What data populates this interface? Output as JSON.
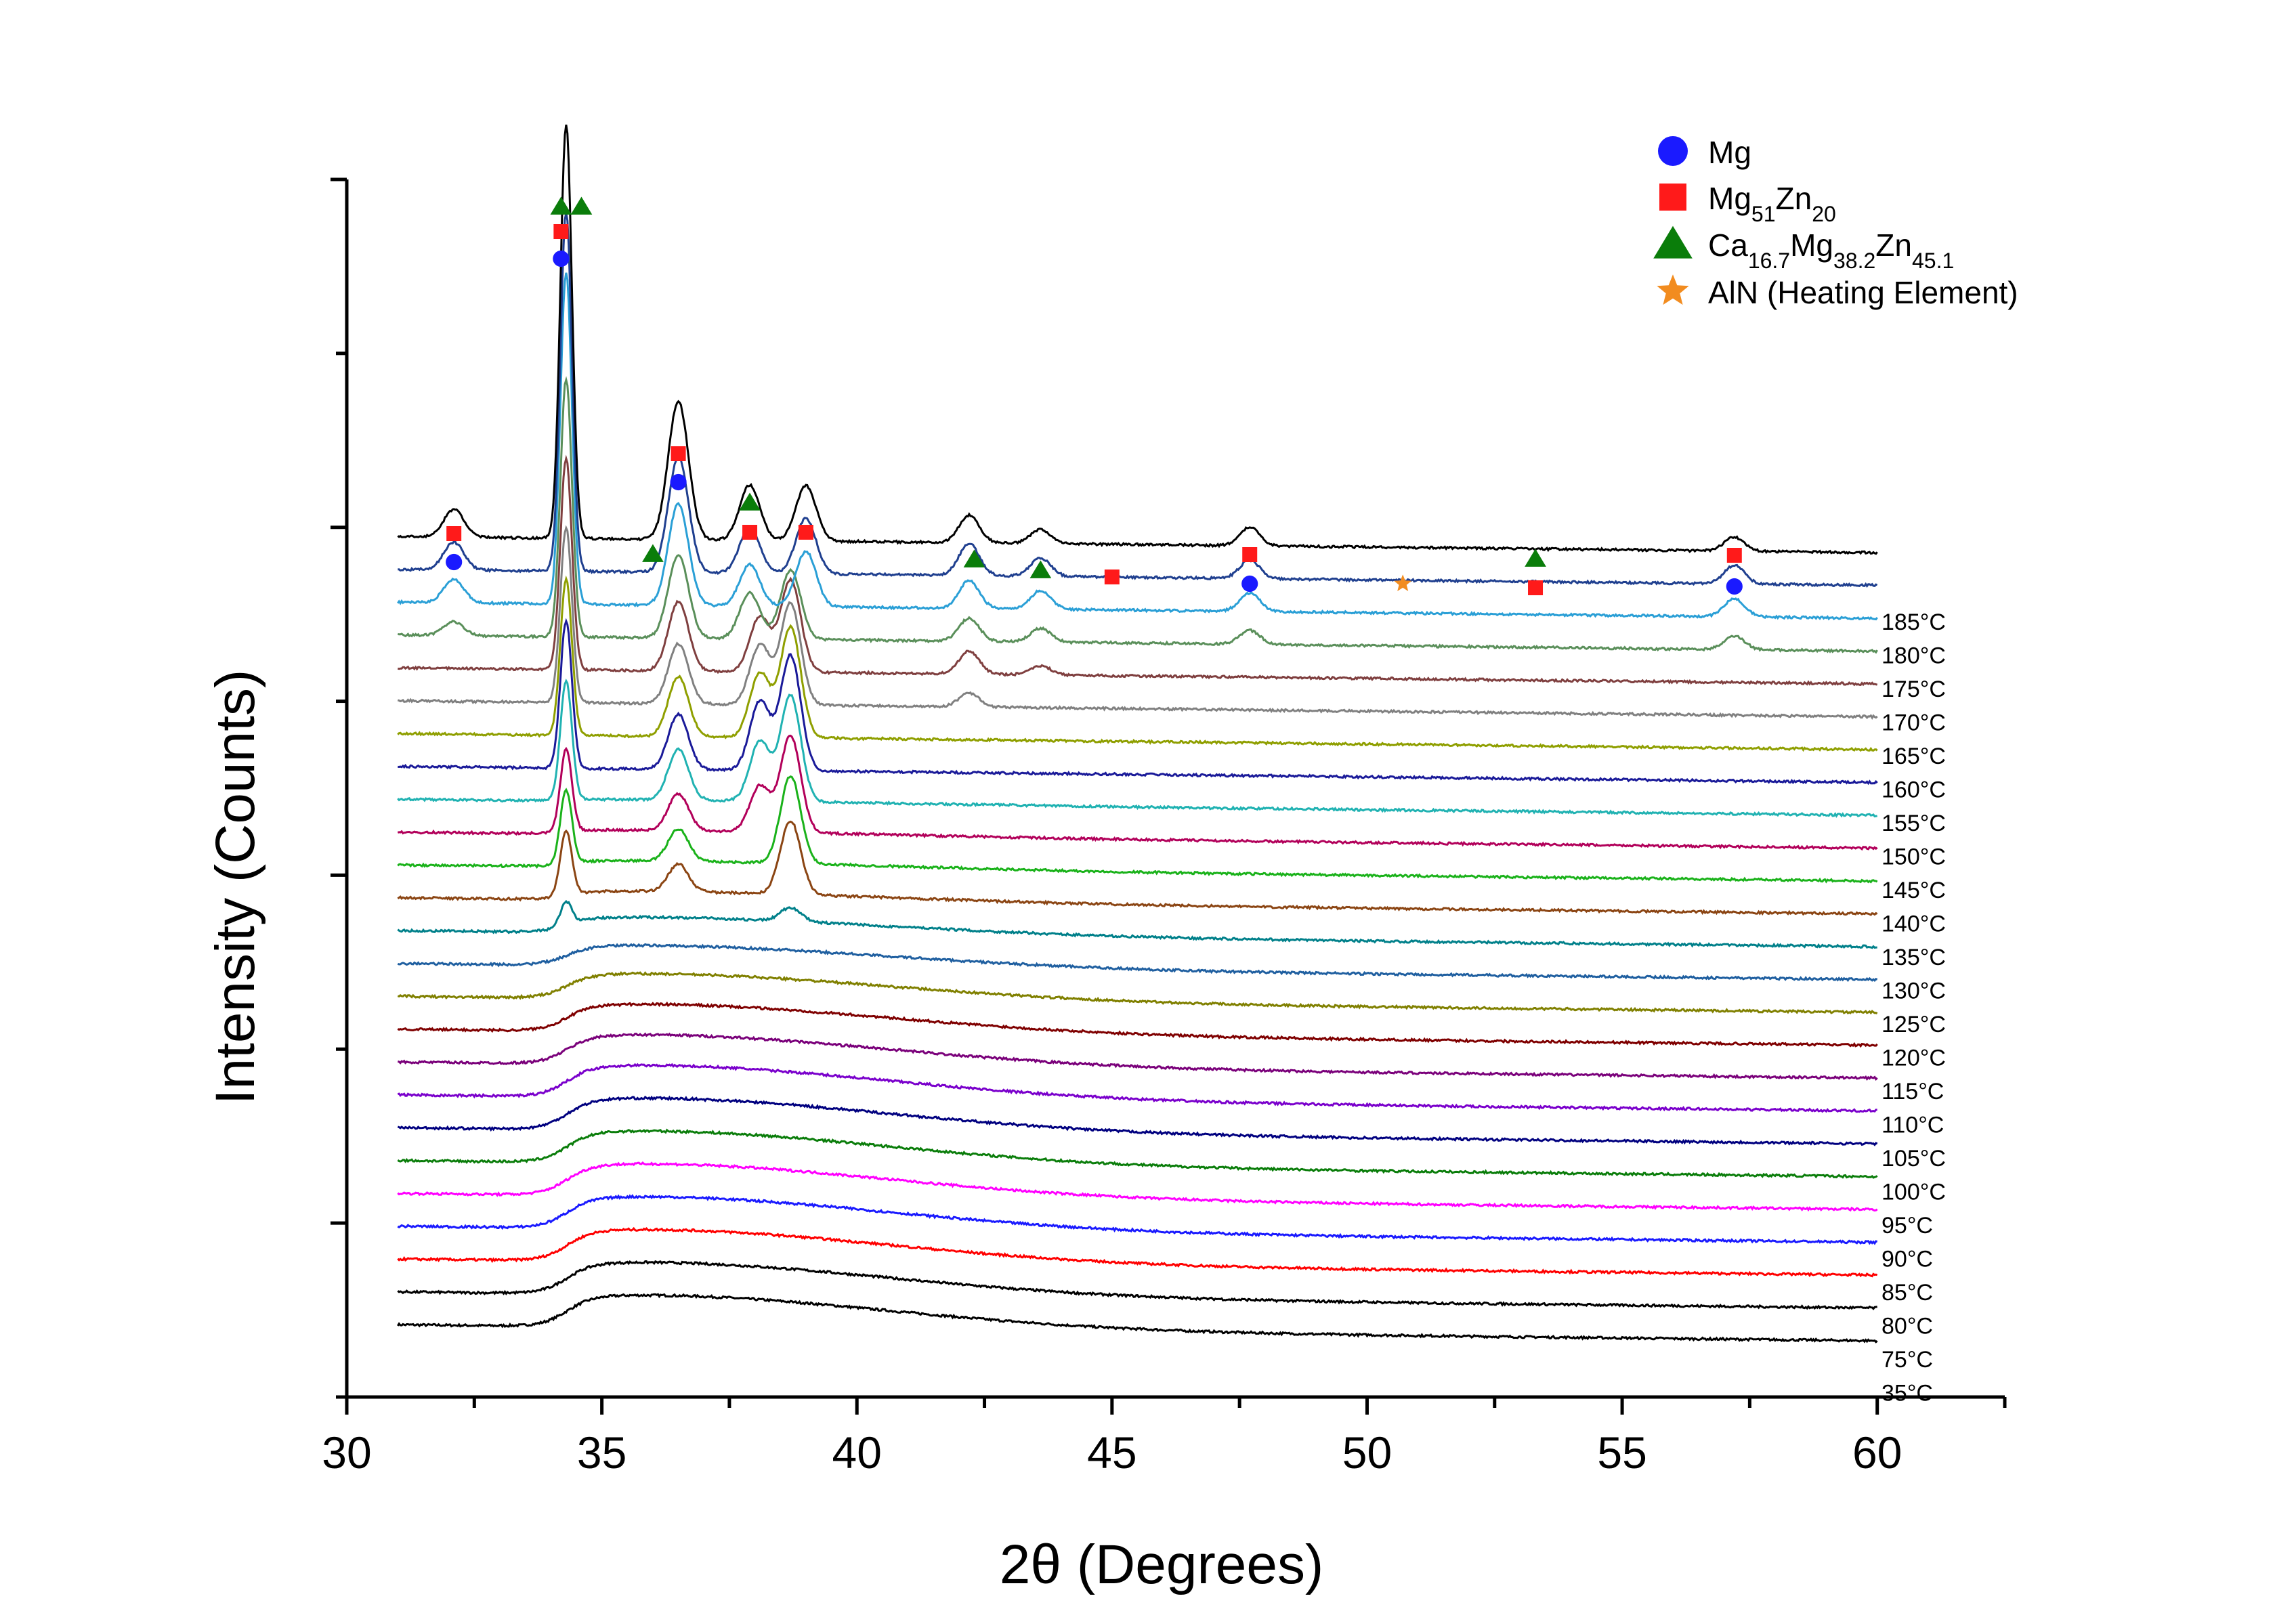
{
  "chart_data": {
    "type": "line",
    "title": "",
    "xlabel": "2θ (Degrees)",
    "ylabel": "Intensity (Counts)",
    "xlim": [
      30,
      62.5
    ],
    "x_ticks": [
      30,
      35,
      40,
      45,
      50,
      55,
      60
    ],
    "x_tick_labels": [
      "30",
      "35",
      "40",
      "45",
      "50",
      "55",
      "60"
    ],
    "x_range": [
      31,
      60
    ],
    "grid": false,
    "legend_placement": "top-right",
    "legend": [
      {
        "shape": "circle",
        "color": "#1a1aff",
        "label": "Mg",
        "sub": [],
        "parts": [
          {
            "t": "Mg",
            "s": false
          }
        ]
      },
      {
        "shape": "square",
        "color": "#ff1a1a",
        "label": "Mg51Zn20",
        "parts": [
          {
            "t": "Mg",
            "s": false
          },
          {
            "t": "51",
            "s": true
          },
          {
            "t": "Zn",
            "s": false
          },
          {
            "t": "20",
            "s": true
          }
        ]
      },
      {
        "shape": "triangle",
        "color": "#0a7d0a",
        "label": "Ca16.7Mg38.2Zn45.1",
        "parts": [
          {
            "t": "Ca",
            "s": false
          },
          {
            "t": "16.7",
            "s": true
          },
          {
            "t": "Mg",
            "s": false
          },
          {
            "t": "38.2",
            "s": true
          },
          {
            "t": "Zn",
            "s": false
          },
          {
            "t": "45.1",
            "s": true
          }
        ]
      },
      {
        "shape": "star",
        "color": "#f28c1f",
        "label": "AlN (Heating Element)",
        "parts": [
          {
            "t": "AlN (Heating Element)",
            "s": false
          }
        ]
      }
    ],
    "series": [
      {
        "name": "35°C",
        "color": "#000000",
        "peaks": [],
        "hump": 0.7
      },
      {
        "name": "75°C",
        "color": "#000000",
        "peaks": [],
        "hump": 0.7
      },
      {
        "name": "80°C",
        "color": "#ff0000",
        "peaks": [],
        "hump": 0.7
      },
      {
        "name": "85°C",
        "color": "#1a1aff",
        "peaks": [],
        "hump": 0.7
      },
      {
        "name": "90°C",
        "color": "#ff00ff",
        "peaks": [],
        "hump": 0.7
      },
      {
        "name": "95°C",
        "color": "#0a7d0a",
        "peaks": [],
        "hump": 0.7
      },
      {
        "name": "100°C",
        "color": "#00007f",
        "peaks": [],
        "hump": 0.7
      },
      {
        "name": "105°C",
        "color": "#7a00cc",
        "peaks": [],
        "hump": 0.7
      },
      {
        "name": "110°C",
        "color": "#7a007a",
        "peaks": [],
        "hump": 0.65
      },
      {
        "name": "115°C",
        "color": "#7f0000",
        "peaks": [],
        "hump": 0.6
      },
      {
        "name": "120°C",
        "color": "#808000",
        "peaks": [],
        "hump": 0.55
      },
      {
        "name": "125°C",
        "color": "#1f5fa0",
        "peaks": [],
        "hump": 0.45
      },
      {
        "name": "130°C",
        "color": "#00808a",
        "peaks": [
          [
            34.3,
            0.5
          ],
          [
            38.7,
            0.3
          ]
        ],
        "hump": 0.35
      },
      {
        "name": "135°C",
        "color": "#8b4513",
        "peaks": [
          [
            34.3,
            1.4
          ],
          [
            36.5,
            0.6
          ],
          [
            38.7,
            1.6
          ]
        ],
        "hump": 0.2
      },
      {
        "name": "140°C",
        "color": "#1ab21a",
        "peaks": [
          [
            34.3,
            1.6
          ],
          [
            36.5,
            0.7
          ],
          [
            38.7,
            1.9
          ]
        ],
        "hump": 0.15
      },
      {
        "name": "145°C",
        "color": "#b2005a",
        "peaks": [
          [
            34.3,
            1.8
          ],
          [
            36.5,
            0.8
          ],
          [
            38.1,
            1.0
          ],
          [
            38.7,
            2.1
          ]
        ],
        "hump": 0.1
      },
      {
        "name": "150°C",
        "color": "#20b2b2",
        "peaks": [
          [
            34.3,
            2.6
          ],
          [
            36.5,
            1.1
          ],
          [
            38.1,
            1.3
          ],
          [
            38.7,
            2.3
          ]
        ],
        "hump": 0.05
      },
      {
        "name": "155°C",
        "color": "#1a1a99",
        "peaks": [
          [
            34.3,
            3.2
          ],
          [
            36.5,
            1.2
          ],
          [
            38.1,
            1.5
          ],
          [
            38.7,
            2.5
          ]
        ],
        "hump": 0
      },
      {
        "name": "160°C",
        "color": "#8f9f00",
        "peaks": [
          [
            34.3,
            3.4
          ],
          [
            36.5,
            1.3
          ],
          [
            38.1,
            1.4
          ],
          [
            38.7,
            2.4
          ]
        ],
        "hump": 0
      },
      {
        "name": "165°C",
        "color": "#808080",
        "peaks": [
          [
            34.3,
            3.8
          ],
          [
            36.5,
            1.3
          ],
          [
            38.1,
            1.3
          ],
          [
            38.7,
            2.2
          ],
          [
            42.2,
            0.3
          ]
        ],
        "hump": 0
      },
      {
        "name": "170°C",
        "color": "#7f3f3f",
        "peaks": [
          [
            34.3,
            4.6
          ],
          [
            36.5,
            1.5
          ],
          [
            38.1,
            1.2
          ],
          [
            38.7,
            2.0
          ],
          [
            42.2,
            0.5
          ],
          [
            43.6,
            0.2
          ]
        ],
        "hump": 0
      },
      {
        "name": "175°C",
        "color": "#5a8f5a",
        "peaks": [
          [
            32.1,
            0.3
          ],
          [
            34.3,
            5.6
          ],
          [
            36.5,
            1.8
          ],
          [
            37.9,
            1.0
          ],
          [
            38.7,
            1.5
          ],
          [
            42.2,
            0.5
          ],
          [
            43.6,
            0.3
          ],
          [
            47.7,
            0.3
          ],
          [
            57.2,
            0.3
          ]
        ],
        "hump": 0
      },
      {
        "name": "180°C",
        "color": "#2a9fd6",
        "peaks": [
          [
            32.1,
            0.5
          ],
          [
            34.3,
            7.2
          ],
          [
            36.5,
            2.2
          ],
          [
            37.9,
            0.9
          ],
          [
            39.0,
            1.2
          ],
          [
            42.2,
            0.6
          ],
          [
            43.6,
            0.4
          ],
          [
            47.7,
            0.4
          ],
          [
            57.2,
            0.4
          ]
        ],
        "hump": 0
      },
      {
        "name": "180°C ",
        "color": "#1f3f8f",
        "peaks": [
          [
            32.1,
            0.6
          ],
          [
            34.3,
            7.8
          ],
          [
            36.5,
            2.5
          ],
          [
            37.9,
            1.0
          ],
          [
            39.0,
            1.2
          ],
          [
            42.2,
            0.7
          ],
          [
            43.6,
            0.4
          ],
          [
            47.7,
            0.4
          ],
          [
            57.2,
            0.4
          ]
        ],
        "hump": 0
      },
      {
        "name": "185°C",
        "color": "#000000",
        "peaks": [
          [
            32.1,
            0.6
          ],
          [
            34.3,
            9.0
          ],
          [
            36.5,
            3.0
          ],
          [
            37.9,
            1.2
          ],
          [
            39.0,
            1.2
          ],
          [
            42.2,
            0.6
          ],
          [
            43.6,
            0.3
          ],
          [
            47.7,
            0.4
          ],
          [
            57.2,
            0.3
          ]
        ],
        "hump": 0
      }
    ],
    "temperature_labels": [
      "185°C",
      "180°C",
      "175°C",
      "170°C",
      "165°C",
      "160°C",
      "155°C",
      "150°C",
      "145°C",
      "140°C",
      "135°C",
      "130°C",
      "125°C",
      "120°C",
      "115°C",
      "110°C",
      "105°C",
      "100°C",
      "95°C",
      "90°C",
      "85°C",
      "80°C",
      "75°C",
      "35°C"
    ],
    "peak_markers": [
      {
        "x": 32.1,
        "symbols": [
          "circle",
          "square"
        ]
      },
      {
        "x": 34.2,
        "symbols": [
          "circle",
          "square",
          "triangle"
        ]
      },
      {
        "x": 34.6,
        "symbols": [
          "triangle"
        ]
      },
      {
        "x": 36.0,
        "symbols": [
          "triangle"
        ]
      },
      {
        "x": 36.5,
        "symbols": [
          "circle",
          "square"
        ]
      },
      {
        "x": 37.9,
        "symbols": [
          "square",
          "triangle"
        ]
      },
      {
        "x": 39.0,
        "symbols": [
          "square"
        ]
      },
      {
        "x": 42.3,
        "symbols": [
          "triangle"
        ]
      },
      {
        "x": 43.6,
        "symbols": [
          "triangle"
        ]
      },
      {
        "x": 45.0,
        "symbols": [
          "square"
        ]
      },
      {
        "x": 47.7,
        "symbols": [
          "circle",
          "square"
        ]
      },
      {
        "x": 50.7,
        "symbols": [
          "star"
        ]
      },
      {
        "x": 53.3,
        "symbols": [
          "square",
          "triangle"
        ]
      },
      {
        "x": 57.2,
        "symbols": [
          "circle",
          "square"
        ]
      }
    ]
  }
}
